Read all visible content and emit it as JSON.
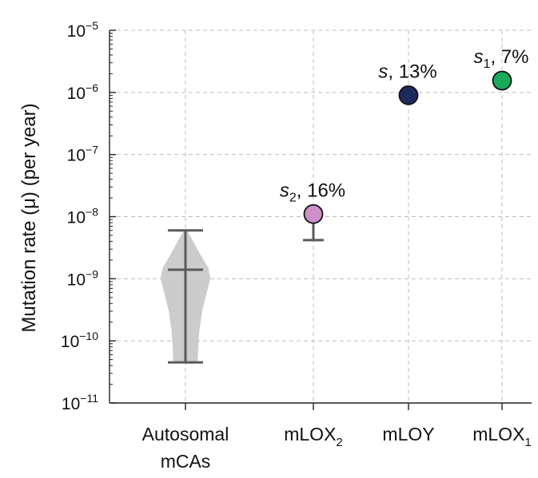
{
  "chart_data": {
    "type": "scatter",
    "ylabel": "Mutation rate (μ) (per year)",
    "yscale": "log",
    "ylim": [
      1e-11,
      1e-05
    ],
    "y_ticks": [
      {
        "base": "10",
        "exp": "−11"
      },
      {
        "base": "10",
        "exp": "−10"
      },
      {
        "base": "10",
        "exp": "−9"
      },
      {
        "base": "10",
        "exp": "−8"
      },
      {
        "base": "10",
        "exp": "−7"
      },
      {
        "base": "10",
        "exp": "−6"
      },
      {
        "base": "10",
        "exp": "−5"
      }
    ],
    "grid": true,
    "categories": [
      {
        "label": "Autosomal",
        "label2": "mCAs",
        "sub": ""
      },
      {
        "label": "mLOX",
        "label2": "",
        "sub": "2"
      },
      {
        "label": "mLOY",
        "label2": "",
        "sub": ""
      },
      {
        "label": "mLOX",
        "label2": "",
        "sub": "1"
      }
    ],
    "violin": {
      "category_index": 0,
      "min": 4.5e-11,
      "max": 6e-09,
      "median": 1.4e-09,
      "color": "#cccccc",
      "shape": [
        [
          4.5e-11,
          0.4
        ],
        [
          8e-11,
          0.42
        ],
        [
          1.5e-10,
          0.46
        ],
        [
          3e-10,
          0.55
        ],
        [
          6e-10,
          0.7
        ],
        [
          1e-09,
          0.82
        ],
        [
          1.5e-09,
          0.75
        ],
        [
          2.2e-09,
          0.55
        ],
        [
          3.2e-09,
          0.36
        ],
        [
          4.5e-09,
          0.2
        ],
        [
          6e-09,
          0.05
        ]
      ]
    },
    "points": [
      {
        "category_index": 1,
        "value": 1.1e-08,
        "err_low": 4.2e-09,
        "color": "#cc8fc8",
        "annotation": {
          "sym": "s",
          "sub": "2",
          "text": ", 16%"
        }
      },
      {
        "category_index": 2,
        "value": 9e-07,
        "color": "#1f2a5c",
        "annotation": {
          "sym": "s",
          "sub": "",
          "text": ", 13%"
        }
      },
      {
        "category_index": 3,
        "value": 1.55e-06,
        "color": "#1aaa5c",
        "annotation": {
          "sym": "s",
          "sub": "1",
          "text": ", 7%"
        }
      }
    ]
  }
}
